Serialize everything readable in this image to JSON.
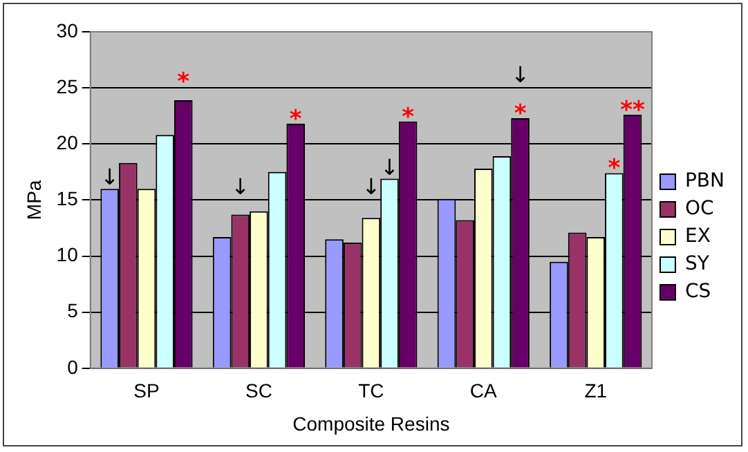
{
  "chart_data": {
    "type": "bar",
    "xlabel": "Composite Resins",
    "ylabel": "MPa",
    "categories": [
      "SP",
      "SC",
      "TC",
      "CA",
      "Z1"
    ],
    "series": [
      {
        "name": "PBN",
        "color": "#9999ff",
        "values": [
          16,
          11.7,
          11.5,
          15.1,
          9.5
        ],
        "value_labels": [
          "↓",
          null,
          null,
          null,
          null
        ]
      },
      {
        "name": "OC",
        "color": "#993366",
        "values": [
          18.3,
          13.7,
          11.2,
          13.2,
          12.1
        ],
        "value_labels": [
          null,
          "↓",
          null,
          null,
          null
        ]
      },
      {
        "name": "EX",
        "color": "#ffffcc",
        "values": [
          16,
          14,
          13.4,
          17.8,
          11.7
        ],
        "value_labels": [
          null,
          null,
          "↓",
          null,
          null
        ]
      },
      {
        "name": "SY",
        "color": "#ccffff",
        "values": [
          20.8,
          17.5,
          16.9,
          18.9,
          17.4
        ],
        "value_labels": [
          null,
          null,
          "↓",
          null,
          "*"
        ]
      },
      {
        "name": "CS",
        "color": "#660066",
        "values": [
          23.9,
          21.8,
          22,
          22.3,
          22.6
        ],
        "value_labels": [
          "*",
          "*",
          "*",
          "↓\n*",
          "**"
        ]
      }
    ],
    "ylim": [
      0,
      30
    ],
    "yticks": [
      0,
      5,
      10,
      15,
      20,
      25,
      30
    ],
    "grid": "y",
    "legend": "right"
  }
}
